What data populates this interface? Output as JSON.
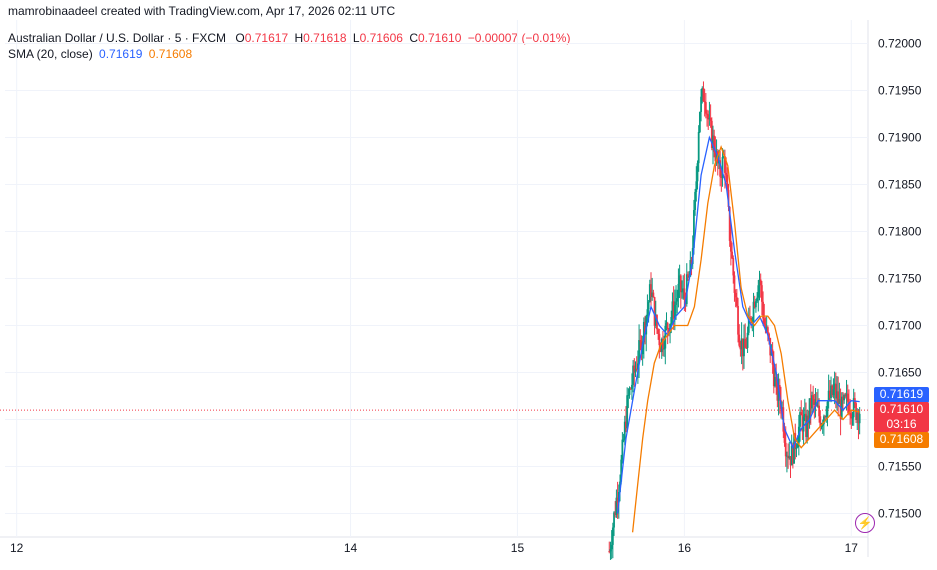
{
  "header": {
    "credit": "mamrobinaadeel created with TradingView.com, Apr 17, 2026 02:11 UTC",
    "symbol": "Australian Dollar / U.S. Dollar · 5 · FXCM",
    "o_label": "O",
    "o_value": "0.71617",
    "h_label": "H",
    "h_value": "0.71618",
    "l_label": "L",
    "l_value": "0.71606",
    "c_label": "C",
    "c_value": "0.71610",
    "change": "−0.00007 (−0.01%)",
    "sma_label": "SMA (20, close)",
    "sma_value_1": "0.71619",
    "sma_value_2": "0.71608"
  },
  "price_tags": {
    "blue": "0.71619",
    "red_price": "0.71610",
    "red_timer": "03:16",
    "orange": "0.71608"
  },
  "icons": {
    "alert": "lightning-icon"
  },
  "colors": {
    "up": "#089981",
    "down": "#f23645",
    "sma_fast": "#2962ff",
    "sma_slow": "#f57c00",
    "last_line": "#f23645",
    "alert": "#9c27b0"
  },
  "chart_data": {
    "type": "line",
    "title": "",
    "ylim": [
      0.71475,
      0.72025
    ],
    "y_ticks": [
      "0.71500",
      "0.71550",
      "0.71600",
      "0.71650",
      "0.71700",
      "0.71750",
      "0.71800",
      "0.71850",
      "0.71900",
      "0.71950",
      "0.72000"
    ],
    "x_ticks": [
      "12",
      "14",
      "15",
      "16",
      "17"
    ],
    "x_tick_pos": [
      12,
      14,
      15,
      16,
      17
    ],
    "xlim": [
      11.93,
      17.1
    ],
    "last_price": 0.7161,
    "series": [
      {
        "kind": "price",
        "x": [
          15.55,
          15.62,
          15.66,
          15.7,
          15.74,
          15.77,
          15.8,
          15.83,
          15.86,
          15.9,
          15.94,
          15.97,
          16.0,
          16.04,
          16.07,
          16.09,
          16.12,
          16.15,
          16.18,
          16.21,
          16.24,
          16.27,
          16.3,
          16.33,
          16.36,
          16.39,
          16.42,
          16.45,
          16.48,
          16.52,
          16.55,
          16.58,
          16.61,
          16.64,
          16.67,
          16.7,
          16.73,
          16.76,
          16.79,
          16.82,
          16.86,
          16.9,
          16.94,
          16.98,
          17.02,
          17.05
        ],
        "y": [
          0.7146,
          0.7155,
          0.7162,
          0.7165,
          0.7168,
          0.7171,
          0.7174,
          0.717,
          0.7168,
          0.717,
          0.7172,
          0.7174,
          0.7173,
          0.7176,
          0.7185,
          0.7193,
          0.7195,
          0.7191,
          0.7189,
          0.7186,
          0.7188,
          0.718,
          0.7174,
          0.7169,
          0.7167,
          0.717,
          0.7173,
          0.7175,
          0.717,
          0.7167,
          0.7163,
          0.7162,
          0.7157,
          0.7156,
          0.7158,
          0.716,
          0.7159,
          0.7162,
          0.7161,
          0.716,
          0.7162,
          0.7163,
          0.7161,
          0.7162,
          0.7161,
          0.7161
        ]
      },
      {
        "name": "SMA (20, close)",
        "kind": "sma_fast",
        "x": [
          15.6,
          15.65,
          15.7,
          15.75,
          15.8,
          15.85,
          15.9,
          15.95,
          16.0,
          16.05,
          16.1,
          16.15,
          16.2,
          16.25,
          16.3,
          16.35,
          16.4,
          16.45,
          16.5,
          16.55,
          16.6,
          16.65,
          16.7,
          16.75,
          16.8,
          16.85,
          16.9,
          16.95,
          17.0,
          17.05
        ],
        "y": [
          0.715,
          0.7158,
          0.7163,
          0.7168,
          0.7172,
          0.717,
          0.7169,
          0.7171,
          0.7172,
          0.7177,
          0.7186,
          0.719,
          0.7188,
          0.7185,
          0.7178,
          0.7172,
          0.717,
          0.7171,
          0.7169,
          0.7165,
          0.7159,
          0.7157,
          0.7159,
          0.716,
          0.7162,
          0.7162,
          0.7162,
          0.7161,
          0.7162,
          0.71619
        ]
      },
      {
        "name": "SMA (20, close)",
        "kind": "sma_slow",
        "x": [
          15.69,
          15.72,
          15.75,
          15.78,
          15.82,
          15.86,
          15.9,
          15.94,
          15.98,
          16.02,
          16.06,
          16.1,
          16.14,
          16.18,
          16.22,
          16.26,
          16.3,
          16.34,
          16.38,
          16.42,
          16.46,
          16.5,
          16.54,
          16.58,
          16.62,
          16.66,
          16.7,
          16.75,
          16.8,
          16.85,
          16.9,
          16.95,
          17.0,
          17.05
        ],
        "y": [
          0.7148,
          0.7153,
          0.7158,
          0.7162,
          0.7166,
          0.7168,
          0.7169,
          0.717,
          0.717,
          0.717,
          0.7172,
          0.7177,
          0.7183,
          0.7187,
          0.7189,
          0.7187,
          0.7181,
          0.7174,
          0.7171,
          0.717,
          0.7171,
          0.7171,
          0.717,
          0.7167,
          0.7162,
          0.7158,
          0.7157,
          0.7158,
          0.7159,
          0.716,
          0.7161,
          0.716,
          0.7161,
          0.71608
        ]
      }
    ]
  }
}
